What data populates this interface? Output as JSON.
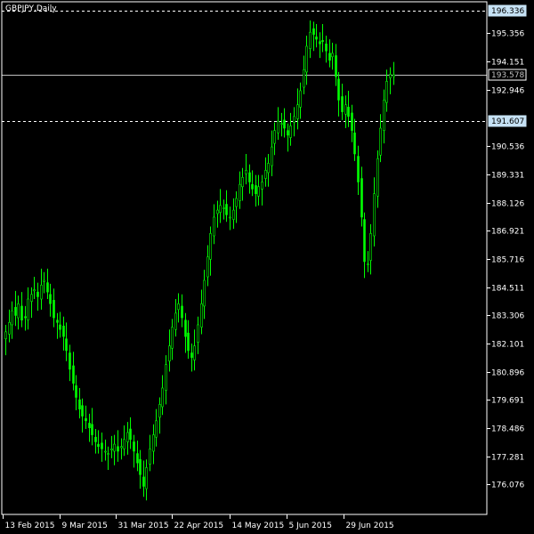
{
  "chart_data": {
    "type": "candlestick",
    "title": "GBPJPY,Daily",
    "colors": {
      "background": "#000000",
      "candle": "#00ff00",
      "frame": "#ffffff",
      "level": "#ffffff",
      "price_box": "#c6e2f5"
    },
    "y_ticks": [
      "195.356",
      "194.151",
      "192.946",
      "190.536",
      "189.331",
      "188.126",
      "186.921",
      "185.716",
      "184.511",
      "183.306",
      "182.101",
      "180.896",
      "179.691",
      "178.486",
      "177.281",
      "176.076"
    ],
    "ylim": [
      174.8,
      196.7
    ],
    "x_ticks": [
      "13 Feb 2015",
      "9 Mar 2015",
      "31 Mar 2015",
      "22 Apr 2015",
      "14 May 2015",
      "5 Jun 2015",
      "29 Jun 2015"
    ],
    "levels": [
      {
        "label": "196.336",
        "value": 196.336,
        "style": "dashed"
      },
      {
        "label": "193.578",
        "value": 193.578,
        "style": "solid"
      },
      {
        "label": "191.607",
        "value": 191.607,
        "style": "dashed"
      }
    ],
    "closes": [
      182.6,
      183.0,
      183.5,
      183.3,
      183.8,
      183.1,
      183.2,
      184.0,
      184.2,
      184.4,
      184.1,
      184.6,
      184.8,
      184.3,
      183.8,
      183.2,
      183.0,
      182.7,
      182.4,
      181.8,
      181.0,
      180.4,
      179.8,
      179.3,
      179.0,
      178.8,
      178.5,
      178.2,
      177.9,
      177.7,
      177.6,
      177.5,
      177.4,
      177.6,
      177.8,
      177.5,
      177.7,
      178.0,
      178.3,
      178.0,
      177.5,
      177.0,
      176.5,
      176.0,
      176.8,
      177.6,
      178.2,
      178.8,
      179.5,
      180.2,
      181.2,
      182.0,
      182.8,
      183.4,
      183.8,
      183.2,
      182.4,
      181.8,
      181.5,
      182.0,
      182.9,
      183.8,
      184.8,
      185.8,
      186.8,
      187.5,
      187.8,
      188.0,
      187.9,
      187.6,
      187.5,
      187.8,
      188.3,
      188.9,
      189.2,
      189.5,
      189.0,
      188.7,
      188.5,
      188.8,
      189.0,
      189.5,
      189.8,
      190.5,
      191.2,
      191.6,
      191.5,
      191.3,
      191.0,
      191.4,
      191.8,
      192.3,
      192.9,
      193.8,
      194.8,
      195.4,
      195.3,
      195.1,
      194.9,
      195.0,
      194.6,
      194.2,
      194.5,
      193.5,
      192.5,
      192.0,
      192.3,
      191.8,
      191.2,
      190.2,
      189.0,
      187.5,
      185.6,
      185.5,
      186.8,
      188.5,
      190.0,
      191.3,
      192.5,
      193.3,
      193.6,
      193.58
    ]
  }
}
